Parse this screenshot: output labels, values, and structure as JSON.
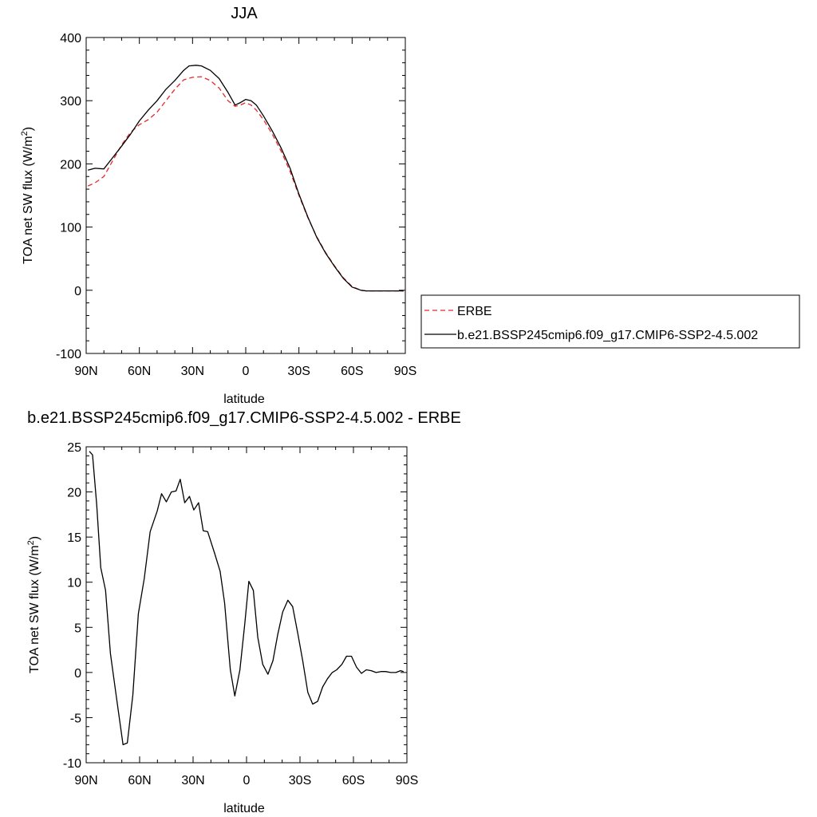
{
  "chart_data": [
    {
      "type": "line",
      "title": "JJA",
      "xlabel": "latitude",
      "ylabel": "TOA net SW flux (W/m",
      "ylabel_sup": "2",
      "ylabel_tail": ")",
      "xlim": [
        90,
        -90
      ],
      "ylim": [
        -100,
        400
      ],
      "xticks": [
        {
          "value": 90,
          "label": "90N"
        },
        {
          "value": 60,
          "label": "60N"
        },
        {
          "value": 30,
          "label": "30N"
        },
        {
          "value": 0,
          "label": "0"
        },
        {
          "value": -30,
          "label": "30S"
        },
        {
          "value": -60,
          "label": "60S"
        },
        {
          "value": -90,
          "label": "90S"
        }
      ],
      "yticks": [
        -100,
        0,
        100,
        200,
        300,
        400
      ],
      "grid": false,
      "legend": "right",
      "series": [
        {
          "name": "ERBE",
          "color": "#e8282a",
          "dash": "dashed",
          "x": [
            89,
            85,
            80,
            75,
            70,
            65,
            60,
            55,
            50,
            45,
            40,
            35,
            30,
            25,
            20,
            15,
            10,
            6,
            3,
            0,
            -3,
            -6,
            -10,
            -15,
            -20,
            -25,
            -30,
            -35,
            -40,
            -45,
            -50,
            -55,
            -60,
            -65,
            -68,
            -72,
            -76,
            -80,
            -85,
            -89
          ],
          "y": [
            165,
            170,
            180,
            205,
            230,
            250,
            262,
            270,
            282,
            300,
            318,
            333,
            337,
            338,
            332,
            320,
            300,
            291,
            293,
            297,
            293,
            285,
            270,
            247,
            220,
            188,
            150,
            115,
            85,
            60,
            39,
            20,
            6,
            0,
            -1,
            -1,
            -1,
            -1,
            -1,
            -1
          ]
        },
        {
          "name": "b.e21.BSSP245cmip6.f09_g17.CMIP6-SSP2-4.5.002",
          "color": "#000000",
          "dash": "solid",
          "x": [
            89,
            85,
            80,
            75,
            70,
            65,
            60,
            55,
            50,
            45,
            40,
            35,
            32,
            28,
            25,
            20,
            15,
            10,
            6,
            3,
            0,
            -3,
            -6,
            -10,
            -15,
            -20,
            -25,
            -30,
            -35,
            -40,
            -45,
            -50,
            -55,
            -60,
            -65,
            -68,
            -72,
            -76,
            -80,
            -85,
            -89
          ],
          "y": [
            190,
            193,
            192,
            210,
            228,
            247,
            268,
            285,
            300,
            318,
            332,
            348,
            355,
            356,
            355,
            348,
            335,
            313,
            293,
            297,
            302,
            300,
            293,
            276,
            252,
            225,
            193,
            152,
            116,
            84,
            59,
            38,
            19,
            5,
            0,
            -1,
            -1,
            -1,
            -1,
            -1,
            -1
          ]
        }
      ]
    },
    {
      "type": "line",
      "title": "b.e21.BSSP245cmip6.f09_g17.CMIP6-SSP2-4.5.002 - ERBE",
      "xlabel": "latitude",
      "ylabel": "TOA net SW flux (W/m",
      "ylabel_sup": "2",
      "ylabel_tail": ")",
      "xlim": [
        90,
        -90
      ],
      "ylim": [
        -10,
        25
      ],
      "xticks": [
        {
          "value": 90,
          "label": "90N"
        },
        {
          "value": 60,
          "label": "60N"
        },
        {
          "value": 30,
          "label": "30N"
        },
        {
          "value": 0,
          "label": "0"
        },
        {
          "value": -30,
          "label": "30S"
        },
        {
          "value": -60,
          "label": "60S"
        },
        {
          "value": -90,
          "label": "90S"
        }
      ],
      "yticks": [
        -10,
        -5,
        0,
        5,
        10,
        15,
        20,
        25
      ],
      "grid": false,
      "legend": "none",
      "series": [
        {
          "color": "#000000",
          "dash": "solid",
          "x": [
            88.2,
            86.4,
            84.1,
            81.8,
            79.1,
            76.4,
            73.1,
            69.3,
            66.9,
            63.8,
            60.7,
            57.4,
            54.1,
            50.1,
            47.7,
            45.0,
            42.2,
            39.6,
            37.2,
            34.7,
            32.0,
            29.6,
            26.9,
            24.3,
            21.8,
            17.9,
            14.8,
            12.3,
            9.1,
            6.6,
            3.7,
            1.0,
            -1.3,
            -3.8,
            -6.3,
            -9.1,
            -12.0,
            -14.8,
            -17.5,
            -20.3,
            -23.2,
            -25.9,
            -28.8,
            -31.6,
            -34.4,
            -37.1,
            -39.9,
            -42.7,
            -45.4,
            -48.1,
            -50.6,
            -53.5,
            -56.1,
            -58.9,
            -61.7,
            -64.5,
            -67.2,
            -70.0,
            -72.7,
            -75.4,
            -78.0,
            -80.9,
            -83.8,
            -86.4,
            -88.1
          ],
          "y": [
            24.5,
            24.1,
            18.6,
            11.6,
            9.1,
            2.1,
            -2.6,
            -8.0,
            -7.8,
            -2.5,
            6.5,
            10.4,
            15.6,
            17.9,
            19.8,
            18.9,
            20.0,
            20.1,
            21.4,
            18.8,
            19.5,
            18.0,
            18.8,
            15.7,
            15.6,
            13.2,
            11.2,
            7.7,
            0.3,
            -2.6,
            0.3,
            5.4,
            10.1,
            9.1,
            3.9,
            0.9,
            -0.2,
            1.3,
            4.2,
            6.7,
            8.0,
            7.3,
            4.3,
            1.2,
            -2.2,
            -3.5,
            -3.2,
            -1.6,
            -0.7,
            0.0,
            0.3,
            0.9,
            1.8,
            1.8,
            0.6,
            -0.1,
            0.3,
            0.2,
            0.0,
            0.1,
            0.1,
            0.0,
            0.0,
            0.2,
            0.1
          ]
        }
      ]
    }
  ]
}
